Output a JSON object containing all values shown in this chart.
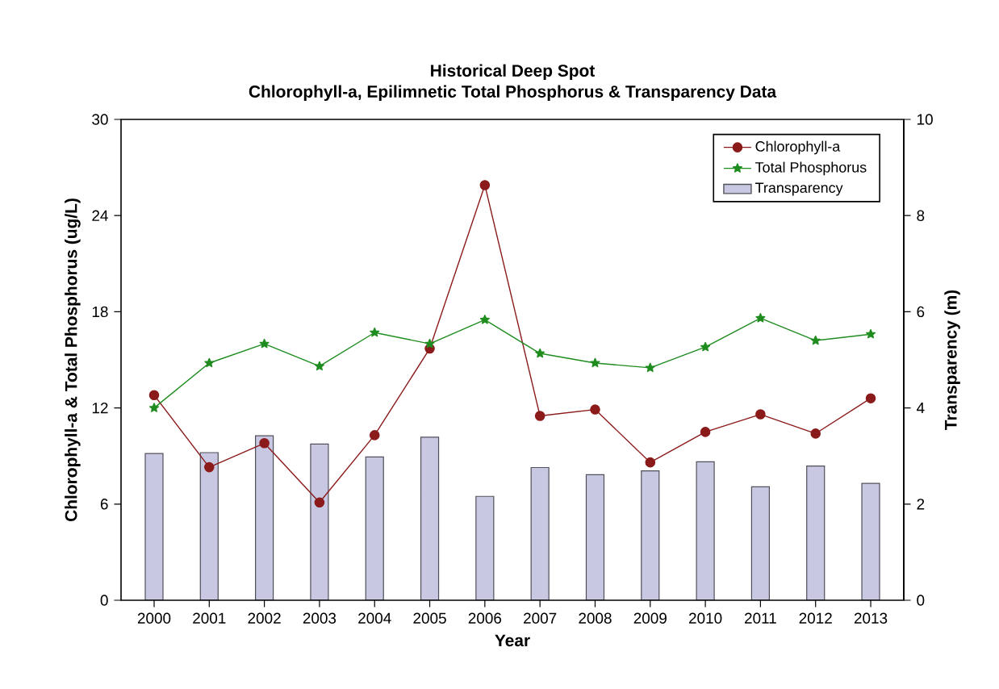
{
  "chart_data": {
    "type": "line",
    "title": "Historical Deep Spot",
    "subtitle": "Chlorophyll-a, Epilimnetic Total Phosphorus & Transparency Data",
    "xlabel": "Year",
    "ylabel": "Chlorophyll-a & Total Phosphorus (ug/L)",
    "y2label": "Transparency (m)",
    "categories": [
      "2000",
      "2001",
      "2002",
      "2003",
      "2004",
      "2005",
      "2006",
      "2007",
      "2008",
      "2009",
      "2010",
      "2011",
      "2012",
      "2013"
    ],
    "series": [
      {
        "name": "Chlorophyll-a",
        "marker": "circle",
        "color": "#8b1a1a",
        "values": [
          12.8,
          8.3,
          9.8,
          6.1,
          10.3,
          15.7,
          25.9,
          11.5,
          11.9,
          8.6,
          10.5,
          11.6,
          10.4,
          12.6
        ]
      },
      {
        "name": "Total Phosphorus",
        "marker": "star",
        "color": "#1e8c1e",
        "values": [
          12.0,
          14.8,
          16.0,
          14.6,
          16.7,
          16.0,
          17.5,
          15.4,
          14.8,
          14.5,
          15.8,
          17.6,
          16.2,
          16.6
        ]
      },
      {
        "name": "Transparency",
        "type": "bar",
        "axis": "y2",
        "color": "#c8c8e2",
        "values": [
          3.05,
          3.07,
          3.42,
          3.25,
          2.98,
          3.39,
          2.16,
          2.76,
          2.61,
          2.69,
          2.88,
          2.36,
          2.79,
          2.43
        ]
      }
    ],
    "ylim": [
      0,
      30
    ],
    "yticks": [
      0,
      6,
      12,
      18,
      24,
      30
    ],
    "y2lim": [
      0,
      10
    ],
    "y2ticks": [
      0,
      2,
      4,
      6,
      8,
      10
    ],
    "grid": false,
    "legend": "top right"
  }
}
